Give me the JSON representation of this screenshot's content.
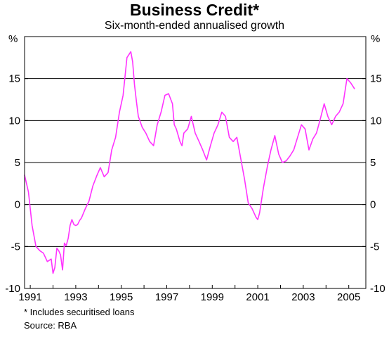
{
  "header": {
    "title": "Business Credit*",
    "subtitle": "Six-month-ended annualised growth"
  },
  "footer": {
    "note": "*   Includes securitised loans",
    "source": "Source: RBA"
  },
  "colors": {
    "line": "#ff33ff",
    "grid": "#000000",
    "axis": "#000000"
  },
  "chart_data": {
    "type": "line",
    "title": "Business Credit*",
    "subtitle": "Six-month-ended annualised growth",
    "y_unit_label": "%",
    "ylim": [
      -10,
      20
    ],
    "yticks": [
      -10,
      -5,
      0,
      5,
      10,
      15
    ],
    "xlim": [
      1990.75,
      2005.75
    ],
    "xticks": [
      1991,
      1993,
      1995,
      1997,
      1999,
      2001,
      2003,
      2005
    ],
    "xtick_labels": [
      "1991",
      "1993",
      "1995",
      "1997",
      "1999",
      "2001",
      "2003",
      "2005"
    ],
    "grid": true,
    "series": [
      {
        "x": [
          1990.75,
          1990.92,
          1991.08,
          1991.25,
          1991.42,
          1991.58,
          1991.75,
          1991.92,
          1992.0,
          1992.08,
          1992.17,
          1992.25,
          1992.33,
          1992.42,
          1992.5,
          1992.58,
          1992.67,
          1992.75,
          1992.83,
          1992.92,
          1993.0,
          1993.08,
          1993.17,
          1993.25,
          1993.42,
          1993.58,
          1993.75,
          1993.92,
          1994.08,
          1994.25,
          1994.42,
          1994.58,
          1994.75,
          1994.92,
          1995.08,
          1995.25,
          1995.42,
          1995.5,
          1995.58,
          1995.67,
          1995.75,
          1995.92,
          1996.08,
          1996.25,
          1996.42,
          1996.58,
          1996.75,
          1996.92,
          1997.08,
          1997.25,
          1997.33,
          1997.42,
          1997.58,
          1997.67,
          1997.75,
          1997.92,
          1998.08,
          1998.25,
          1998.42,
          1998.58,
          1998.75,
          1998.92,
          1999.08,
          1999.25,
          1999.42,
          1999.58,
          1999.75,
          1999.92,
          2000.08,
          2000.25,
          2000.42,
          2000.58,
          2000.75,
          2000.92,
          2001.0,
          2001.08,
          2001.25,
          2001.42,
          2001.58,
          2001.75,
          2001.92,
          2002.08,
          2002.25,
          2002.42,
          2002.58,
          2002.75,
          2002.92,
          2003.08,
          2003.25,
          2003.42,
          2003.58,
          2003.75,
          2003.92,
          2004.08,
          2004.25,
          2004.42,
          2004.58,
          2004.75,
          2004.92,
          2005.08,
          2005.25
        ],
        "values": [
          3.5,
          1.5,
          -2.5,
          -5.0,
          -5.5,
          -5.8,
          -6.8,
          -6.5,
          -8.2,
          -7.5,
          -5.2,
          -5.5,
          -6.0,
          -7.8,
          -4.6,
          -4.9,
          -4.0,
          -2.5,
          -1.8,
          -2.4,
          -2.5,
          -2.4,
          -1.9,
          -1.6,
          -0.5,
          0.4,
          2.2,
          3.4,
          4.4,
          3.3,
          3.8,
          6.5,
          8.0,
          11.0,
          13.0,
          17.5,
          18.2,
          17.0,
          14.3,
          12.2,
          10.5,
          9.2,
          8.5,
          7.5,
          7.0,
          9.5,
          11.0,
          13.0,
          13.2,
          12.0,
          9.5,
          9.0,
          7.5,
          7.0,
          8.5,
          9.0,
          10.5,
          8.5,
          7.5,
          6.5,
          5.3,
          7.0,
          8.5,
          9.5,
          11.0,
          10.5,
          8.0,
          7.5,
          8.0,
          5.5,
          3.0,
          0.2,
          -0.5,
          -1.5,
          -1.8,
          -1.0,
          2.0,
          4.5,
          6.5,
          8.2,
          6.0,
          5.0,
          5.2,
          5.8,
          6.5,
          8.0,
          9.5,
          9.0,
          6.5,
          7.8,
          8.5,
          10.2,
          12.0,
          10.5,
          9.5,
          10.5,
          11.0,
          12.0,
          15.0,
          14.5,
          13.8
        ]
      }
    ]
  }
}
